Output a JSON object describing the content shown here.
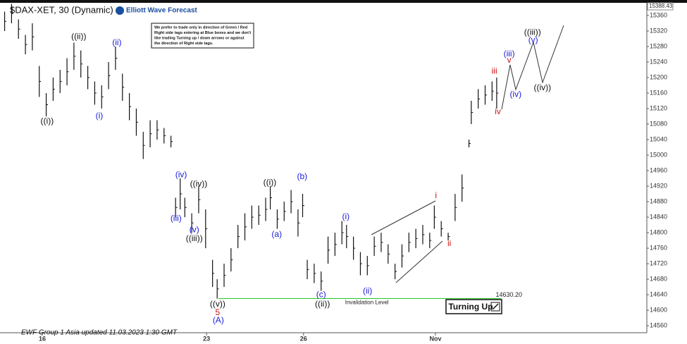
{
  "chart_data": {
    "type": "range-bar",
    "title": "$DAX-XET, 30 (Dynamic)",
    "brand": "Elliott Wave Forecast",
    "notice": [
      "We prefer to trade only in direction of Green / Red",
      "Right side tags entering at Blue boxes and we don't",
      "like trading Turning up / down arrows or against",
      "the direction of Right side tags."
    ],
    "footer": "EWF Group 1 Asia updated 11.03.2023 1:30 GMT",
    "badge": "Turning Up",
    "bar_color": "#111111",
    "last_price": {
      "value": 15388.43,
      "label": "15388.43"
    },
    "invalidation": {
      "label": "Invalidation Level",
      "value": 14630.2,
      "value_label": "14630.20",
      "x": [
        94.5,
        217
      ],
      "color": "#22cc22"
    },
    "x": [
      2,
      5,
      8,
      11,
      14,
      17,
      20,
      23,
      26,
      29,
      32,
      35,
      38,
      41,
      44,
      47,
      50,
      53,
      56,
      59,
      62,
      65,
      68,
      71,
      74,
      76,
      78,
      80,
      83,
      86,
      89,
      92,
      94,
      97,
      100,
      103,
      106,
      109,
      112,
      115,
      117,
      120,
      123,
      126,
      129,
      131,
      133,
      136,
      139,
      142,
      145,
      148,
      150,
      153,
      156,
      159,
      162,
      165,
      168,
      171,
      174,
      177,
      180,
      183,
      186,
      188,
      191,
      194,
      197,
      200,
      203,
      204,
      207,
      210,
      213,
      215
    ],
    "high": [
      15370,
      15390,
      15350,
      15310,
      15340,
      15230,
      15160,
      15200,
      15220,
      15250,
      15290,
      15270,
      15230,
      15190,
      15180,
      15240,
      15280,
      15210,
      15160,
      15120,
      15060,
      15090,
      15090,
      15070,
      15050,
      14890,
      14940,
      14890,
      14850,
      14920,
      14860,
      14730,
      14680,
      14720,
      14760,
      14820,
      14850,
      14870,
      14870,
      14890,
      14920,
      14860,
      14880,
      14910,
      14860,
      14900,
      14730,
      14720,
      14700,
      14790,
      14800,
      14830,
      14820,
      14790,
      14750,
      14740,
      14790,
      14800,
      14770,
      14720,
      14770,
      14800,
      14810,
      14820,
      14800,
      14870,
      14830,
      14800,
      14900,
      14950,
      15040,
      15140,
      15170,
      15180,
      15190,
      15200
    ],
    "low": [
      15320,
      15340,
      15300,
      15260,
      15270,
      15150,
      15100,
      15140,
      15160,
      15180,
      15220,
      15200,
      15170,
      15130,
      15120,
      15170,
      15220,
      15140,
      15090,
      15050,
      14990,
      15020,
      15040,
      15030,
      15020,
      14840,
      14860,
      14840,
      14800,
      14850,
      14760,
      14660,
      14630,
      14660,
      14700,
      14760,
      14780,
      14810,
      14820,
      14830,
      14860,
      14810,
      14830,
      14850,
      14790,
      14840,
      14680,
      14670,
      14650,
      14720,
      14740,
      14770,
      14760,
      14730,
      14690,
      14690,
      14740,
      14750,
      14720,
      14680,
      14710,
      14750,
      14760,
      14770,
      14760,
      14810,
      14790,
      14780,
      14830,
      14880,
      15020,
      15080,
      15120,
      15130,
      15140,
      15120
    ],
    "xlim": [
      0,
      280
    ],
    "xticks": [
      {
        "value": 18.3,
        "label": "16"
      },
      {
        "value": 89.4,
        "label": "23"
      },
      {
        "value": 131.4,
        "label": "26"
      },
      {
        "value": 188.5,
        "label": "Nov"
      }
    ],
    "ylim": [
      14542,
      15400
    ],
    "yticks": [
      14560,
      14600,
      14640,
      14680,
      14720,
      14760,
      14800,
      14840,
      14880,
      14920,
      14960,
      15000,
      15040,
      15080,
      15120,
      15160,
      15200,
      15240,
      15280,
      15320,
      15360
    ],
    "grid": false,
    "annotations": [
      {
        "text": "((i))",
        "x": 20.4,
        "y": 15087,
        "color": "#111111"
      },
      {
        "text": "((ii))",
        "x": 34.1,
        "y": 15305,
        "color": "#111111"
      },
      {
        "text": "(i)",
        "x": 43,
        "y": 15100,
        "color": "#1a1adb"
      },
      {
        "text": "(ii)",
        "x": 50.6,
        "y": 15289,
        "color": "#1a1adb"
      },
      {
        "text": "(iv)",
        "x": 78.4,
        "y": 14949,
        "color": "#1a1adb"
      },
      {
        "text": "(iii)",
        "x": 76.2,
        "y": 14836,
        "color": "#1a1adb"
      },
      {
        "text": "(v)",
        "x": 84.1,
        "y": 14807,
        "color": "#1a1adb"
      },
      {
        "text": "((iv))",
        "x": 86,
        "y": 14925,
        "color": "#111111"
      },
      {
        "text": "((iii))",
        "x": 84.1,
        "y": 14784,
        "color": "#111111"
      },
      {
        "text": "((v))",
        "x": 94.2,
        "y": 14615,
        "color": "#111111"
      },
      {
        "text": "5",
        "x": 94.2,
        "y": 14593,
        "color": "#cc1111"
      },
      {
        "text": "(A)",
        "x": 94.5,
        "y": 14573,
        "color": "#1a1adb"
      },
      {
        "text": "((i))",
        "x": 116.8,
        "y": 14929,
        "color": "#111111"
      },
      {
        "text": "(a)",
        "x": 119.8,
        "y": 14795,
        "color": "#1a1adb"
      },
      {
        "text": "(b)",
        "x": 130.8,
        "y": 14944,
        "color": "#1a1adb"
      },
      {
        "text": "(c)",
        "x": 139,
        "y": 14640,
        "color": "#1a1adb"
      },
      {
        "text": "((ii))",
        "x": 139.6,
        "y": 14615,
        "color": "#111111"
      },
      {
        "text": "(i)",
        "x": 149.7,
        "y": 14840,
        "color": "#1a1adb"
      },
      {
        "text": "(ii)",
        "x": 159.1,
        "y": 14649,
        "color": "#1a1adb"
      },
      {
        "text": "i",
        "x": 188.7,
        "y": 14895,
        "color": "#cc1111"
      },
      {
        "text": "ii",
        "x": 194.5,
        "y": 14771,
        "color": "#cc1111"
      },
      {
        "text": "iii",
        "x": 214,
        "y": 15216,
        "color": "#cc1111"
      },
      {
        "text": "iv",
        "x": 215.5,
        "y": 15111,
        "color": "#cc1111"
      },
      {
        "text": "(iii)",
        "x": 220.4,
        "y": 15260,
        "color": "#1a1adb"
      },
      {
        "text": "v",
        "x": 220.4,
        "y": 15244,
        "color": "#cc1111"
      },
      {
        "text": "(iv)",
        "x": 223.2,
        "y": 15156,
        "color": "#1a1adb"
      },
      {
        "text": "((iii))",
        "x": 230.5,
        "y": 15316,
        "color": "#111111"
      },
      {
        "text": "(v)",
        "x": 230.8,
        "y": 15296,
        "color": "#1a1adb"
      },
      {
        "text": "((iv))",
        "x": 234.8,
        "y": 15173,
        "color": "#111111"
      }
    ]
  }
}
